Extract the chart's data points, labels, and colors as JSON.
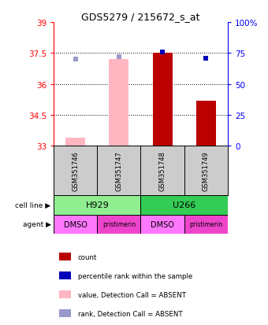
{
  "title": "GDS5279 / 215672_s_at",
  "samples": [
    "GSM351746",
    "GSM351747",
    "GSM351748",
    "GSM351749"
  ],
  "ylim_left": [
    33,
    39
  ],
  "ylim_right": [
    0,
    100
  ],
  "yticks_left": [
    33,
    34.5,
    36,
    37.5,
    39
  ],
  "yticks_right": [
    0,
    25,
    50,
    75,
    100
  ],
  "ytick_right_labels": [
    "0",
    "25",
    "50",
    "75",
    "100%"
  ],
  "bar_values": [
    33.38,
    37.22,
    37.5,
    35.2
  ],
  "bar_absent": [
    true,
    true,
    false,
    false
  ],
  "rank_values": [
    70,
    72,
    76,
    71
  ],
  "rank_absent": [
    true,
    true,
    false,
    false
  ],
  "cell_line_groups": [
    {
      "label": "H929",
      "samples": [
        0,
        1
      ],
      "color": "#90EE90"
    },
    {
      "label": "U266",
      "samples": [
        2,
        3
      ],
      "color": "#33CC55"
    }
  ],
  "agent_labels": [
    "DMSO",
    "pristimerin",
    "DMSO",
    "pristimerin"
  ],
  "agent_color_dmso": "#FF77FF",
  "agent_color_prist": "#EE44CC",
  "bar_color_present": "#BB0000",
  "bar_color_absent": "#FFB6C1",
  "rank_color_present": "#0000BB",
  "rank_color_absent": "#9999CC",
  "bar_width": 0.45,
  "gsm_box_color": "#CCCCCC",
  "background_color": "#FFFFFF",
  "legend_items": [
    {
      "color": "#BB0000",
      "label": "count"
    },
    {
      "color": "#0000BB",
      "label": "percentile rank within the sample"
    },
    {
      "color": "#FFB6C1",
      "label": "value, Detection Call = ABSENT"
    },
    {
      "color": "#9999CC",
      "label": "rank, Detection Call = ABSENT"
    }
  ]
}
